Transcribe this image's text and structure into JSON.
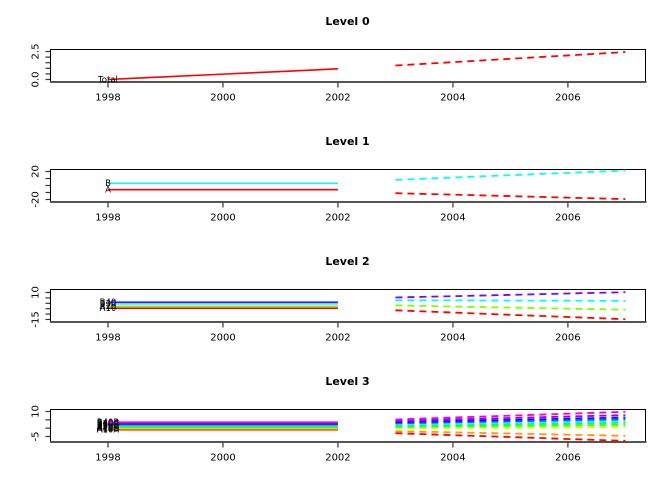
{
  "figure": {
    "background": "#ffffff",
    "axis_color": "#000000",
    "baseline_color": "#555555",
    "kind": "hierarchical time series forecast plot, 4 levels"
  },
  "chart_data": [
    {
      "type": "line",
      "title": "Level 0",
      "x_hist": [
        1998,
        1999,
        2000,
        2001,
        2002
      ],
      "x_fc": [
        2003,
        2004,
        2005,
        2006,
        2007
      ],
      "x_ticks": [
        1998,
        2000,
        2002,
        2004,
        2006
      ],
      "xlim": [
        1997.0,
        2007.35
      ],
      "ylim": [
        -0.18,
        2.68
      ],
      "y_ticks": [
        0,
        0.5,
        1,
        1.5,
        2,
        2.5
      ],
      "y_tick_labels": [
        {
          "text": "0.0",
          "value": 0
        },
        {
          "text": "2.5",
          "value": 2.5
        }
      ],
      "series": [
        {
          "label": "Total",
          "color": "#FF0000",
          "hist": [
            0.0,
            0.24,
            0.48,
            0.71,
            0.95
          ],
          "forecast": [
            1.25,
            1.55,
            1.85,
            2.15,
            2.45
          ]
        }
      ]
    },
    {
      "type": "line",
      "title": "Level 1",
      "x_hist": [
        1998,
        1999,
        2000,
        2001,
        2002
      ],
      "x_fc": [
        2003,
        2004,
        2005,
        2006,
        2007
      ],
      "x_ticks": [
        1998,
        2000,
        2002,
        2004,
        2006
      ],
      "xlim": [
        1997.0,
        2007.35
      ],
      "ylim": [
        -22.9,
        22.9
      ],
      "y_ticks": [
        -20,
        -10,
        0,
        10,
        20
      ],
      "y_tick_labels": [
        {
          "text": "-20",
          "value": -20
        },
        {
          "text": "20",
          "value": 20
        }
      ],
      "series": [
        {
          "label": "A",
          "color": "#FF0000",
          "hist": [
            -6.0,
            -6.0,
            -6.0,
            -6.0,
            -6.0
          ],
          "forecast": [
            -11.0,
            -13.1,
            -15.2,
            -17.4,
            -19.5
          ]
        },
        {
          "label": "B",
          "color": "#00FFFF",
          "hist": [
            3.2,
            3.2,
            3.2,
            3.2,
            3.2
          ],
          "forecast": [
            8.0,
            11.4,
            14.8,
            18.1,
            21.5
          ]
        }
      ]
    },
    {
      "type": "line",
      "title": "Level 2",
      "x_hist": [
        1998,
        1999,
        2000,
        2001,
        2002
      ],
      "x_fc": [
        2003,
        2004,
        2005,
        2006,
        2007
      ],
      "x_ticks": [
        1998,
        2000,
        2002,
        2004,
        2006
      ],
      "xlim": [
        1997.0,
        2007.35
      ],
      "ylim": [
        -16.9,
        12.8
      ],
      "y_ticks": [
        -15,
        -10,
        -5,
        0,
        5,
        10
      ],
      "y_tick_labels": [
        {
          "text": "-15",
          "value": -15
        },
        {
          "text": "10",
          "value": 10
        }
      ],
      "series": [
        {
          "label": "A10",
          "color": "#FF0000",
          "hist": [
            -4.5,
            -4.5,
            -4.5,
            -4.5,
            -4.5
          ],
          "forecast": [
            -6.5,
            -8.6,
            -10.7,
            -12.7,
            -14.8
          ]
        },
        {
          "label": "A20",
          "color": "#80FF00",
          "hist": [
            -2.7,
            -2.7,
            -2.7,
            -2.7,
            -2.7
          ],
          "forecast": [
            -2.0,
            -3.0,
            -4.0,
            -5.0,
            -6.0
          ]
        },
        {
          "label": "B30",
          "color": "#00FFFF",
          "hist": [
            -0.5,
            -0.5,
            -0.5,
            -0.5,
            -0.5
          ],
          "forecast": [
            2.8,
            2.7,
            2.5,
            2.4,
            2.2
          ]
        },
        {
          "label": "B40",
          "color": "#8000FF",
          "hist": [
            1.0,
            1.0,
            1.0,
            1.0,
            1.0
          ],
          "forecast": [
            5.4,
            6.6,
            7.8,
            9.1,
            10.3
          ]
        }
      ]
    },
    {
      "type": "line",
      "title": "Level 3",
      "x_hist": [
        1998,
        1999,
        2000,
        2001,
        2002
      ],
      "x_fc": [
        2003,
        2004,
        2005,
        2006,
        2007
      ],
      "x_ticks": [
        1998,
        2000,
        2002,
        2004,
        2006
      ],
      "xlim": [
        1997.0,
        2007.35
      ],
      "ylim": [
        -8.0,
        11.2
      ],
      "y_ticks": [
        -5,
        0,
        5,
        10
      ],
      "y_tick_labels": [
        {
          "text": "-5",
          "value": -5
        },
        {
          "text": "10",
          "value": 10
        }
      ],
      "series": [
        {
          "label": "A10A",
          "color": "#FF0000",
          "hist": [
            -0.9,
            -0.9,
            -0.9,
            -0.9,
            -0.9
          ],
          "forecast": [
            -3.0,
            -4.2,
            -5.3,
            -6.5,
            -7.6
          ]
        },
        {
          "label": "A10B",
          "color": "#FF9900",
          "hist": [
            -0.4,
            -0.4,
            -0.4,
            -0.4,
            -0.4
          ],
          "forecast": [
            -1.8,
            -2.5,
            -3.2,
            -3.9,
            -4.6
          ]
        },
        {
          "label": "A10C",
          "color": "#CCFF00",
          "hist": [
            0.1,
            0.1,
            0.1,
            0.1,
            0.1
          ],
          "forecast": [
            0.0,
            0.2,
            0.3,
            0.5,
            0.6
          ]
        },
        {
          "label": "A20A",
          "color": "#33FF00",
          "hist": [
            0.6,
            0.6,
            0.6,
            0.6,
            0.6
          ],
          "forecast": [
            0.8,
            1.1,
            1.4,
            1.7,
            2.0
          ]
        },
        {
          "label": "A20B",
          "color": "#00FF66",
          "hist": [
            1.1,
            1.1,
            1.1,
            1.1,
            1.1
          ],
          "forecast": [
            1.5,
            1.9,
            2.4,
            2.8,
            3.2
          ]
        },
        {
          "label": "B30A",
          "color": "#00FFFF",
          "hist": [
            1.6,
            1.6,
            1.6,
            1.6,
            1.6
          ],
          "forecast": [
            2.2,
            2.7,
            3.3,
            3.8,
            4.3
          ]
        },
        {
          "label": "B30B",
          "color": "#0066FF",
          "hist": [
            2.1,
            2.1,
            2.1,
            2.1,
            2.1
          ],
          "forecast": [
            2.9,
            3.5,
            4.1,
            4.7,
            5.3
          ]
        },
        {
          "label": "B30C",
          "color": "#3300FF",
          "hist": [
            2.6,
            2.6,
            2.6,
            2.6,
            2.6
          ],
          "forecast": [
            3.6,
            4.3,
            5.0,
            5.7,
            6.4
          ]
        },
        {
          "label": "B40A",
          "color": "#9900FF",
          "hist": [
            3.1,
            3.1,
            3.1,
            3.1,
            3.1
          ],
          "forecast": [
            4.4,
            5.3,
            6.1,
            7.0,
            7.8
          ]
        },
        {
          "label": "B40B",
          "color": "#FF00CC",
          "hist": [
            3.6,
            3.6,
            3.6,
            3.6,
            3.6
          ],
          "forecast": [
            5.2,
            6.4,
            7.5,
            8.7,
            9.8
          ]
        }
      ]
    }
  ]
}
